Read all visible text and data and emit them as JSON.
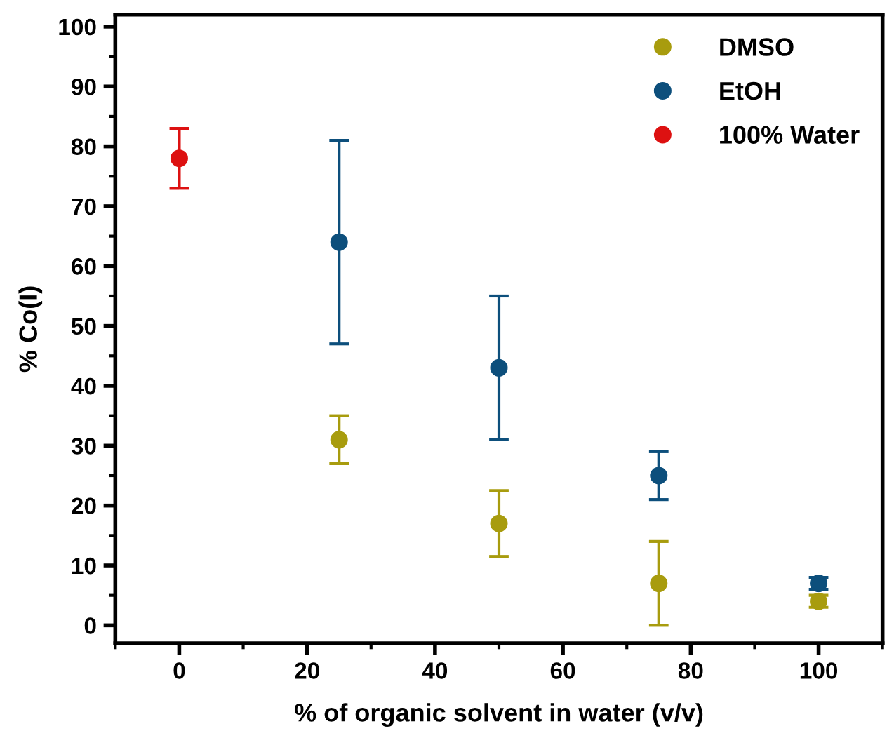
{
  "chart_data": {
    "type": "scatter",
    "xlabel": "% of organic solvent in water (v/v)",
    "ylabel": "% Co(I)",
    "xlim": [
      -10,
      110
    ],
    "xticks": [
      0,
      20,
      40,
      60,
      80,
      100
    ],
    "ylim": [
      -3,
      102
    ],
    "yticks": [
      0,
      10,
      20,
      30,
      40,
      50,
      60,
      70,
      80,
      90,
      100
    ],
    "legend": "top right",
    "grid": false,
    "marker": "circle",
    "series": [
      {
        "name": "DMSO",
        "color": "#a89c0e",
        "x": [
          25,
          50,
          75,
          100
        ],
        "values": [
          31,
          17,
          7,
          4
        ],
        "errors": [
          4,
          5.5,
          7,
          1
        ]
      },
      {
        "name": "EtOH",
        "color": "#0d4f7c",
        "x": [
          25,
          50,
          75,
          100
        ],
        "values": [
          64,
          43,
          25,
          7
        ],
        "errors": [
          17,
          12,
          4,
          1
        ]
      },
      {
        "name": "100% Water",
        "color": "#dd1111",
        "x": [
          0
        ],
        "values": [
          78
        ],
        "errors": [
          5
        ]
      }
    ]
  }
}
